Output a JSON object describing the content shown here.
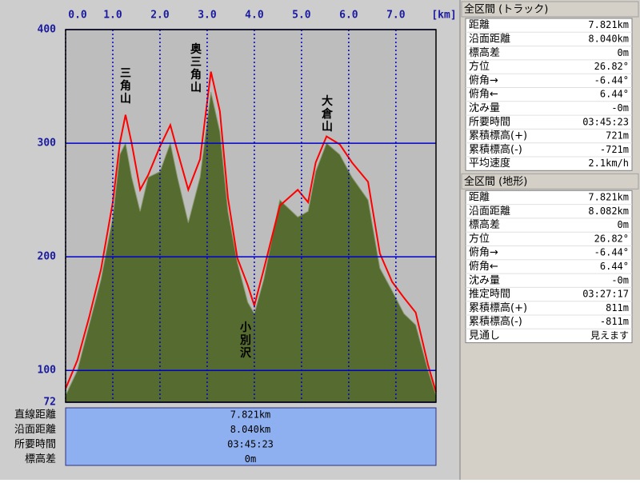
{
  "chart_data": {
    "type": "area",
    "x": [
      0,
      0.25,
      0.5,
      0.75,
      1.0,
      1.15,
      1.27,
      1.4,
      1.58,
      1.75,
      2.0,
      2.22,
      2.37,
      2.6,
      2.85,
      3.08,
      3.27,
      3.44,
      3.64,
      3.86,
      4.0,
      4.2,
      4.54,
      4.92,
      5.14,
      5.3,
      5.53,
      5.81,
      6.07,
      6.41,
      6.66,
      6.92,
      7.17,
      7.42,
      7.68,
      7.85
    ],
    "series": [
      {
        "color": "#556b2f",
        "fill": true,
        "values": [
          78,
          100,
          140,
          180,
          235,
          290,
          300,
          270,
          240,
          270,
          275,
          300,
          270,
          230,
          270,
          345,
          310,
          240,
          195,
          160,
          150,
          180,
          250,
          235,
          240,
          275,
          300,
          290,
          270,
          250,
          190,
          170,
          150,
          140,
          100,
          78
        ]
      },
      {
        "color": "#ff0000",
        "fill": false,
        "values": [
          84,
          109,
          147,
          189,
          248,
          300,
          325,
          300,
          259,
          272,
          297,
          316,
          293,
          259,
          286,
          363,
          328,
          252,
          199,
          175,
          157,
          189,
          245,
          259,
          248,
          283,
          306,
          299,
          283,
          266,
          203,
          178,
          164,
          151,
          105,
          81
        ]
      }
    ],
    "xlim": [
      0,
      7.85
    ],
    "xticks": [
      {
        "value": 0,
        "label": "0.0"
      },
      {
        "value": 1,
        "label": "1.0"
      },
      {
        "value": 2,
        "label": "2.0"
      },
      {
        "value": 3,
        "label": "3.0"
      },
      {
        "value": 4,
        "label": "4.0"
      },
      {
        "value": 5,
        "label": "5.0"
      },
      {
        "value": 6,
        "label": "6.0"
      },
      {
        "value": 7,
        "label": "7.0"
      }
    ],
    "x_unit": "[km]",
    "ylim": [
      72,
      400
    ],
    "yticks": [
      72,
      100,
      200,
      300,
      400
    ],
    "grid": true,
    "annotations": [
      "三角山",
      "奥三角山",
      "大倉山",
      "小別沢"
    ]
  },
  "summary": {
    "labels": [
      "直線距離",
      "沿面距離",
      "所要時間",
      "標高差"
    ],
    "values": [
      "7.821km",
      "8.040km",
      "03:45:23",
      "0m"
    ]
  },
  "panels": [
    {
      "title": "全区間 (トラック)",
      "rows": [
        [
          "距離",
          "7.821km"
        ],
        [
          "沿面距離",
          "8.040km"
        ],
        [
          "標高差",
          "0m"
        ],
        [
          "方位",
          "26.82°"
        ],
        [
          "俯角→",
          "-6.44°"
        ],
        [
          "俯角←",
          "6.44°"
        ],
        [
          "沈み量",
          "-0m"
        ],
        [
          "所要時間",
          "03:45:23"
        ],
        [
          "累積標高(+)",
          "721m"
        ],
        [
          "累積標高(-)",
          "-721m"
        ],
        [
          "平均速度",
          "2.1km/h"
        ]
      ]
    },
    {
      "title": "全区間 (地形)",
      "rows": [
        [
          "距離",
          "7.821km"
        ],
        [
          "沿面距離",
          "8.082km"
        ],
        [
          "標高差",
          "0m"
        ],
        [
          "方位",
          "26.82°"
        ],
        [
          "俯角→",
          "-6.44°"
        ],
        [
          "俯角←",
          "6.44°"
        ],
        [
          "沈み量",
          "-0m"
        ],
        [
          "推定時間",
          "03:27:17"
        ],
        [
          "累積標高(+)",
          "811m"
        ],
        [
          "累積標高(-)",
          "-811m"
        ],
        [
          "見通し",
          "見えます"
        ]
      ]
    }
  ]
}
